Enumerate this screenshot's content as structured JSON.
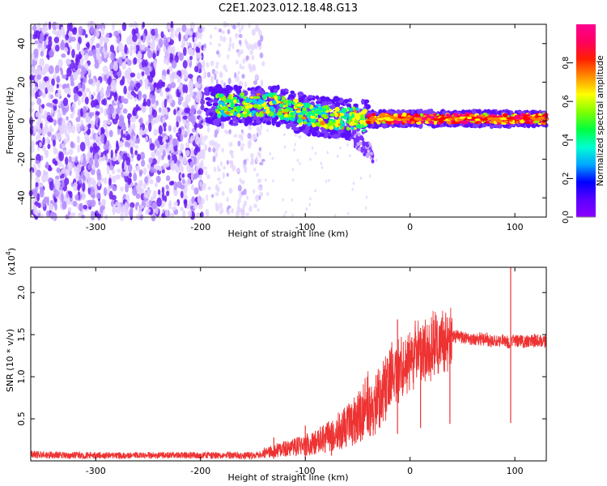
{
  "title": "C2E1.2023.012.18.48.G13",
  "chart_data": [
    {
      "type": "heatmap",
      "xlabel": "Height of straight line (km)",
      "ylabel": "Frequency (Hz)",
      "xlim": [
        -362,
        130
      ],
      "ylim": [
        -50,
        50
      ],
      "xticks": [
        -300,
        -200,
        -100,
        0,
        100
      ],
      "yticks": [
        -40,
        -20,
        0,
        20,
        40
      ],
      "colorbar": {
        "label": "Normalized spectral amplitude",
        "range": [
          0,
          1
        ],
        "ticks": [
          0.0,
          0.2,
          0.4,
          0.6,
          0.8
        ],
        "tick_labels": [
          "0.0",
          "0.2",
          "0.4",
          "0.6",
          "0.8"
        ],
        "colormap": [
          "#ffffff",
          "#e0c8ff",
          "#8040ff",
          "#5000ff",
          "#0000ff",
          "#00c8ff",
          "#00ff80",
          "#80ff00",
          "#ffff00",
          "#ff8000",
          "#ff0000",
          "#ff0080"
        ]
      },
      "bands": [
        {
          "x_range": [
            -362,
            -200
          ],
          "f_range": [
            -50,
            50
          ],
          "amplitude": 0.08,
          "description_color": "#7020ff"
        },
        {
          "x_range": [
            -200,
            -150
          ],
          "f_range": [
            -50,
            50
          ],
          "amplitude": 0.03
        },
        {
          "x_range": [
            -190,
            -110
          ],
          "f_center": 8,
          "f_halfwidth": 8,
          "amplitude": 0.3
        },
        {
          "x_range": [
            -110,
            -40
          ],
          "f_center": 0,
          "f_halfwidth": 9,
          "amplitude": 0.35
        },
        {
          "x_range": [
            -40,
            130
          ],
          "f_center": 1,
          "f_halfwidth": 3,
          "amplitude": 0.7
        }
      ]
    },
    {
      "type": "line",
      "xlabel": "Height of straight line (km)",
      "ylabel": "SNR (10 * v/v)",
      "scale_label": "(x10",
      "scale_exponent": "4",
      "scale_suffix": ")",
      "xlim": [
        -362,
        130
      ],
      "ylim": [
        0,
        2.3
      ],
      "xticks": [
        -300,
        -200,
        -100,
        0,
        100
      ],
      "yticks": [
        0.5,
        1.0,
        1.5,
        2.0
      ],
      "ytick_labels": [
        "0.5",
        "1.0",
        "1.5",
        "2.0"
      ],
      "color": "#ee3333",
      "series": [
        {
          "x": [
            -362,
            -300,
            -250,
            -200,
            -150,
            -130,
            -110,
            -100,
            -80,
            -60,
            -50,
            -40,
            -30,
            -20,
            -10,
            0,
            10,
            20,
            30,
            40,
            50,
            60,
            70,
            80,
            90,
            95,
            100,
            110,
            120,
            130
          ],
          "values": [
            0.06,
            0.05,
            0.05,
            0.05,
            0.05,
            0.08,
            0.1,
            0.12,
            0.18,
            0.3,
            0.4,
            0.55,
            0.75,
            0.95,
            1.1,
            1.2,
            1.3,
            1.35,
            1.4,
            1.48,
            1.47,
            1.45,
            1.45,
            1.42,
            1.42,
            1.4,
            1.43,
            1.42,
            1.43,
            1.42
          ]
        }
      ],
      "spikes": [
        {
          "x": 96,
          "min": 0.45,
          "max": 2.3
        },
        {
          "x": -12,
          "max": 1.68
        },
        {
          "x": 10,
          "max": 1.58
        },
        {
          "x": 38,
          "max": 1.55
        },
        {
          "x": -130,
          "max": 0.28
        },
        {
          "x": -100,
          "max": 0.42
        },
        {
          "x": -75,
          "max": 0.45
        }
      ]
    }
  ]
}
